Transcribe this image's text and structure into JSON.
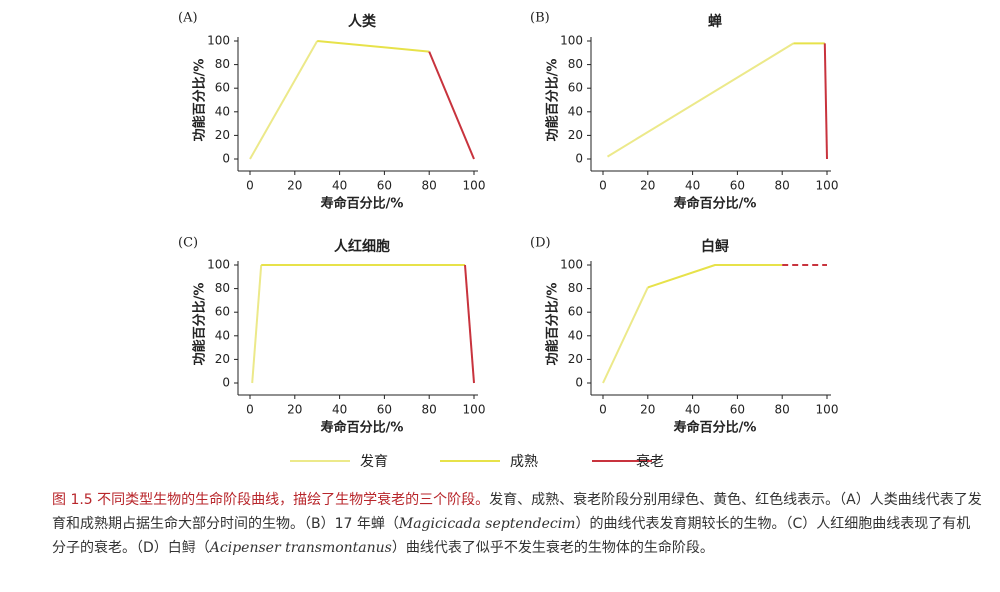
{
  "colors": {
    "development": "#ece98a",
    "maturity": "#e7e24a",
    "senescence": "#c8333d",
    "axis": "#222222"
  },
  "chart_data": [
    {
      "panel": "(A)",
      "title": "人类",
      "type": "line",
      "xlabel": "寿命百分比/%",
      "ylabel": "功能百分比/%",
      "xlim": [
        0,
        100
      ],
      "ylim": [
        0,
        100
      ],
      "xticks": [
        "0",
        "20",
        "40",
        "60",
        "80",
        "100"
      ],
      "yticks": [
        "0",
        "20",
        "40",
        "60",
        "80",
        "100"
      ],
      "series": [
        {
          "stage": "development",
          "x": [
            0,
            30
          ],
          "y": [
            0,
            100
          ]
        },
        {
          "stage": "maturity",
          "x": [
            30,
            80
          ],
          "y": [
            100,
            91
          ]
        },
        {
          "stage": "senescence",
          "x": [
            80,
            100
          ],
          "y": [
            91,
            0
          ]
        }
      ]
    },
    {
      "panel": "(B)",
      "title": "蝉",
      "type": "line",
      "xlabel": "寿命百分比/%",
      "ylabel": "功能百分比/%",
      "xlim": [
        0,
        100
      ],
      "ylim": [
        0,
        100
      ],
      "xticks": [
        "0",
        "20",
        "40",
        "60",
        "80",
        "100"
      ],
      "yticks": [
        "0",
        "20",
        "40",
        "60",
        "80",
        "100"
      ],
      "series": [
        {
          "stage": "development",
          "x": [
            2,
            85
          ],
          "y": [
            2,
            98
          ]
        },
        {
          "stage": "maturity",
          "x": [
            85,
            99
          ],
          "y": [
            98,
            98
          ]
        },
        {
          "stage": "senescence",
          "x": [
            99,
            100
          ],
          "y": [
            98,
            0
          ]
        }
      ]
    },
    {
      "panel": "(C)",
      "title": "人红细胞",
      "type": "line",
      "xlabel": "寿命百分比/%",
      "ylabel": "功能百分比/%",
      "xlim": [
        0,
        100
      ],
      "ylim": [
        0,
        100
      ],
      "xticks": [
        "0",
        "20",
        "40",
        "60",
        "80",
        "100"
      ],
      "yticks": [
        "0",
        "20",
        "40",
        "60",
        "80",
        "100"
      ],
      "series": [
        {
          "stage": "development",
          "x": [
            1,
            5
          ],
          "y": [
            0,
            100
          ]
        },
        {
          "stage": "maturity",
          "x": [
            5,
            96
          ],
          "y": [
            100,
            100
          ]
        },
        {
          "stage": "senescence",
          "x": [
            96,
            100
          ],
          "y": [
            100,
            0
          ]
        }
      ]
    },
    {
      "panel": "(D)",
      "title": "白鲟",
      "type": "line",
      "xlabel": "寿命百分比/%",
      "ylabel": "功能百分比/%",
      "xlim": [
        0,
        100
      ],
      "ylim": [
        0,
        100
      ],
      "xticks": [
        "0",
        "20",
        "40",
        "60",
        "80",
        "100"
      ],
      "yticks": [
        "0",
        "20",
        "40",
        "60",
        "80",
        "100"
      ],
      "series": [
        {
          "stage": "development",
          "x": [
            0,
            20
          ],
          "y": [
            0,
            81
          ]
        },
        {
          "stage": "maturity",
          "x": [
            20,
            50,
            80
          ],
          "y": [
            81,
            100,
            100
          ]
        },
        {
          "stage": "senescence",
          "x": [
            80,
            100
          ],
          "y": [
            100,
            100
          ],
          "dashed": true
        }
      ]
    }
  ],
  "legend": [
    {
      "stage": "development",
      "label": "发育"
    },
    {
      "stage": "maturity",
      "label": "成熟"
    },
    {
      "stage": "senescence",
      "label": "衰老"
    }
  ],
  "caption": {
    "head": "图 1.5   不同类型生物的生命阶段曲线，描绘了生物学衰老的三个阶段。",
    "t1": "发育、成熟、衰老阶段分别用绿色、黄色、红色线表示。（A）人类曲线代表了发育和成熟期占据生命大部分时间的生物。（B）17 年蝉（",
    "sp1": "Magicicada septendecim",
    "t2": "）的曲线代表发育期较长的生物。（C）人红细胞曲线表现了有机分子的衰老。（D）白鲟（",
    "sp2": "Acipenser transmontanus",
    "t3": "）曲线代表了似乎不发生衰老的生物体的生命阶段。"
  }
}
